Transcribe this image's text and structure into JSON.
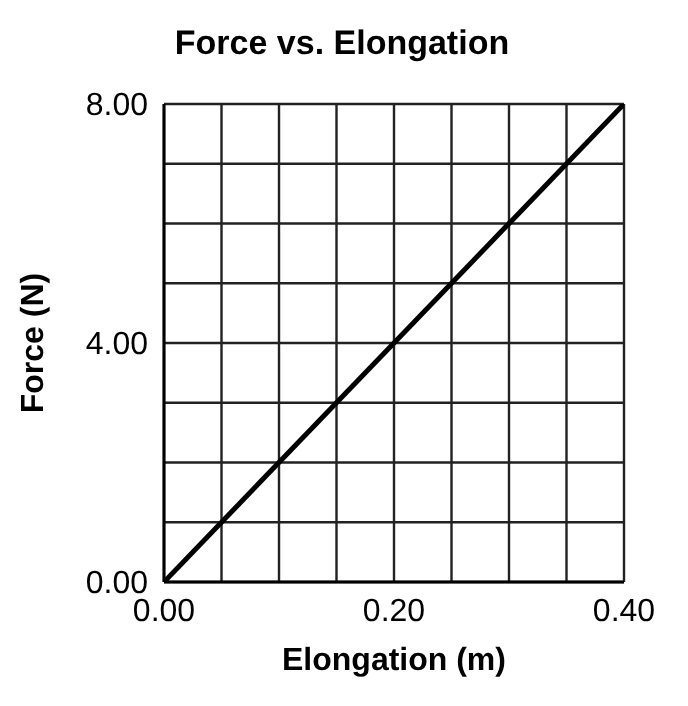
{
  "chart_data": {
    "type": "line",
    "title": "Force vs. Elongation",
    "xlabel": "Elongation (m)",
    "ylabel": "Force (N)",
    "x": [
      0,
      0.4
    ],
    "series": [
      {
        "color": "#000000",
        "values": [
          0,
          8
        ]
      }
    ],
    "xlim": [
      0,
      0.4
    ],
    "xticks": [
      {
        "value": 0,
        "label": "0.00"
      },
      {
        "value": 0.05,
        "label": null
      },
      {
        "value": 0.1,
        "label": null
      },
      {
        "value": 0.15,
        "label": null
      },
      {
        "value": 0.2,
        "label": "0.20"
      },
      {
        "value": 0.25,
        "label": null
      },
      {
        "value": 0.3,
        "label": null
      },
      {
        "value": 0.35,
        "label": null
      },
      {
        "value": 0.4,
        "label": "0.40"
      }
    ],
    "ylim": [
      0,
      8
    ],
    "yticks": [
      {
        "value": 0,
        "label": "0.00"
      },
      {
        "value": 1,
        "label": null
      },
      {
        "value": 2,
        "label": null
      },
      {
        "value": 3,
        "label": null
      },
      {
        "value": 4,
        "label": "4.00"
      },
      {
        "value": 5,
        "label": null
      },
      {
        "value": 6,
        "label": null
      },
      {
        "value": 7,
        "label": null
      },
      {
        "value": 8,
        "label": "8.00"
      }
    ],
    "grid": true,
    "marker": "none",
    "line_style": "solid"
  }
}
